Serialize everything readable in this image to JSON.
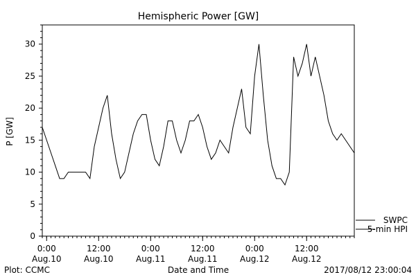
{
  "chart_data": {
    "type": "line",
    "title": "Hemispheric Power [GW]",
    "xlabel": "Date and Time",
    "ylabel": "P [GW]",
    "ylim": [
      0,
      33
    ],
    "yticks": [
      0,
      5,
      10,
      15,
      20,
      25,
      30
    ],
    "xlim": [
      "2017-08-09T23:00",
      "2017-08-12T23:00"
    ],
    "xticks": [
      {
        "time": "2017-08-10T00:00",
        "line1": "0:00",
        "line2": "Aug.10"
      },
      {
        "time": "2017-08-10T12:00",
        "line1": "12:00",
        "line2": "Aug.10"
      },
      {
        "time": "2017-08-11T00:00",
        "line1": "0:00",
        "line2": "Aug.11"
      },
      {
        "time": "2017-08-11T12:00",
        "line1": "12:00",
        "line2": "Aug.11"
      },
      {
        "time": "2017-08-12T00:00",
        "line1": "0:00",
        "line2": "Aug.12"
      },
      {
        "time": "2017-08-12T12:00",
        "line1": "12:00",
        "line2": "Aug.12"
      }
    ],
    "legend": {
      "placement": "bottom-right",
      "entries": [
        "SWPC",
        "5-min HPI"
      ]
    },
    "series": [
      {
        "name": "SWPC",
        "points": [
          [
            "2017-08-09T23:00",
            17
          ],
          [
            "2017-08-10T00:00",
            15
          ],
          [
            "2017-08-10T01:00",
            13
          ],
          [
            "2017-08-10T02:00",
            11
          ],
          [
            "2017-08-10T03:00",
            9
          ],
          [
            "2017-08-10T04:00",
            9
          ],
          [
            "2017-08-10T05:00",
            10
          ],
          [
            "2017-08-10T06:00",
            10
          ],
          [
            "2017-08-10T07:00",
            10
          ],
          [
            "2017-08-10T08:00",
            10
          ],
          [
            "2017-08-10T09:00",
            10
          ],
          [
            "2017-08-10T10:00",
            9
          ],
          [
            "2017-08-10T11:00",
            14
          ],
          [
            "2017-08-10T12:00",
            17
          ],
          [
            "2017-08-10T13:00",
            20
          ],
          [
            "2017-08-10T14:00",
            22
          ],
          [
            "2017-08-10T15:00",
            16
          ],
          [
            "2017-08-10T16:00",
            12
          ],
          [
            "2017-08-10T17:00",
            9
          ],
          [
            "2017-08-10T18:00",
            10
          ],
          [
            "2017-08-10T19:00",
            13
          ],
          [
            "2017-08-10T20:00",
            16
          ],
          [
            "2017-08-10T21:00",
            18
          ],
          [
            "2017-08-10T22:00",
            19
          ],
          [
            "2017-08-10T23:00",
            19
          ],
          [
            "2017-08-11T00:00",
            15
          ],
          [
            "2017-08-11T01:00",
            12
          ],
          [
            "2017-08-11T02:00",
            11
          ],
          [
            "2017-08-11T03:00",
            14
          ],
          [
            "2017-08-11T04:00",
            18
          ],
          [
            "2017-08-11T05:00",
            18
          ],
          [
            "2017-08-11T06:00",
            15
          ],
          [
            "2017-08-11T07:00",
            13
          ],
          [
            "2017-08-11T08:00",
            15
          ],
          [
            "2017-08-11T09:00",
            18
          ],
          [
            "2017-08-11T10:00",
            18
          ],
          [
            "2017-08-11T11:00",
            19
          ],
          [
            "2017-08-11T12:00",
            17
          ],
          [
            "2017-08-11T13:00",
            14
          ],
          [
            "2017-08-11T14:00",
            12
          ],
          [
            "2017-08-11T15:00",
            13
          ],
          [
            "2017-08-11T16:00",
            15
          ],
          [
            "2017-08-11T17:00",
            14
          ],
          [
            "2017-08-11T18:00",
            13
          ],
          [
            "2017-08-11T19:00",
            17
          ],
          [
            "2017-08-11T20:00",
            20
          ],
          [
            "2017-08-11T21:00",
            23
          ],
          [
            "2017-08-11T22:00",
            17
          ],
          [
            "2017-08-11T23:00",
            16
          ],
          [
            "2017-08-12T00:00",
            25
          ],
          [
            "2017-08-12T01:00",
            30
          ],
          [
            "2017-08-12T02:00",
            22
          ],
          [
            "2017-08-12T03:00",
            15
          ],
          [
            "2017-08-12T04:00",
            11
          ],
          [
            "2017-08-12T05:00",
            9
          ],
          [
            "2017-08-12T06:00",
            9
          ],
          [
            "2017-08-12T07:00",
            8
          ],
          [
            "2017-08-12T08:00",
            10
          ],
          [
            "2017-08-12T09:00",
            28
          ],
          [
            "2017-08-12T10:00",
            25
          ],
          [
            "2017-08-12T11:00",
            27
          ],
          [
            "2017-08-12T12:00",
            30
          ],
          [
            "2017-08-12T13:00",
            25
          ],
          [
            "2017-08-12T14:00",
            28
          ],
          [
            "2017-08-12T15:00",
            25
          ],
          [
            "2017-08-12T16:00",
            22
          ],
          [
            "2017-08-12T17:00",
            18
          ],
          [
            "2017-08-12T18:00",
            16
          ],
          [
            "2017-08-12T19:00",
            15
          ],
          [
            "2017-08-12T20:00",
            16
          ],
          [
            "2017-08-12T21:00",
            15
          ],
          [
            "2017-08-12T22:00",
            14
          ],
          [
            "2017-08-12T23:00",
            13
          ]
        ]
      },
      {
        "name": "5-min HPI",
        "points": []
      }
    ],
    "footer": {
      "left": "Plot: CCMC",
      "right": "2017/08/12 23:00:04"
    }
  }
}
